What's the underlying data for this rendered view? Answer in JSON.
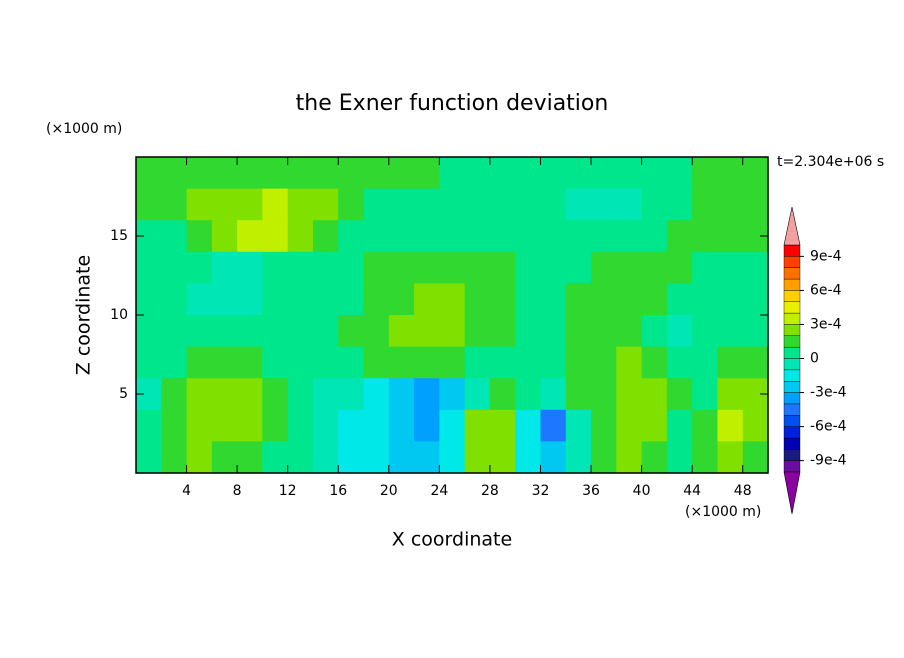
{
  "chart_data": {
    "type": "heatmap",
    "title": "the Exner function deviation",
    "xlabel": "X coordinate",
    "ylabel": "Z coordinate",
    "xunit": "(×1000 m)",
    "yunit": "(×1000 m)",
    "annotation": "t=2.304e+06 s",
    "xlim": [
      0,
      50
    ],
    "ylim": [
      0,
      20
    ],
    "xticks": [
      4,
      8,
      12,
      16,
      20,
      24,
      28,
      32,
      36,
      40,
      44,
      48
    ],
    "yticks": [
      5,
      10,
      15
    ],
    "x": [
      1,
      3,
      5,
      7,
      9,
      11,
      13,
      15,
      17,
      19,
      21,
      23,
      25,
      27,
      29,
      31,
      33,
      35,
      37,
      39,
      41,
      43,
      45,
      47,
      49
    ],
    "y": [
      19,
      17,
      15,
      13,
      11,
      9,
      7,
      5,
      3,
      1
    ],
    "z": [
      [
        0.00015,
        0.00015,
        0.00015,
        0.00015,
        0.00015,
        0.00015,
        0.00015,
        0.00015,
        0.00015,
        0.00015,
        0.00015,
        0.00015,
        5e-05,
        5e-05,
        5e-05,
        5e-05,
        5e-05,
        5e-05,
        5e-05,
        5e-05,
        5e-05,
        5e-05,
        0.00015,
        0.00015,
        0.00015
      ],
      [
        0.00015,
        0.00015,
        0.00025,
        0.00025,
        0.00025,
        0.00035,
        0.00025,
        0.00025,
        0.00015,
        5e-05,
        5e-05,
        5e-05,
        5e-05,
        5e-05,
        5e-05,
        5e-05,
        5e-05,
        -5e-05,
        -5e-05,
        -5e-05,
        5e-05,
        5e-05,
        0.00015,
        0.00015,
        0.00015
      ],
      [
        5e-05,
        5e-05,
        0.00015,
        0.00025,
        0.00035,
        0.00035,
        0.00025,
        0.00015,
        5e-05,
        5e-05,
        5e-05,
        5e-05,
        5e-05,
        5e-05,
        5e-05,
        5e-05,
        5e-05,
        5e-05,
        5e-05,
        5e-05,
        5e-05,
        0.00015,
        0.00015,
        0.00015,
        0.00015
      ],
      [
        5e-05,
        5e-05,
        5e-05,
        -5e-05,
        -5e-05,
        5e-05,
        5e-05,
        5e-05,
        5e-05,
        0.00015,
        0.00015,
        0.00015,
        0.00015,
        0.00015,
        0.00015,
        5e-05,
        5e-05,
        5e-05,
        0.00015,
        0.00015,
        0.00015,
        0.00015,
        5e-05,
        5e-05,
        5e-05
      ],
      [
        5e-05,
        5e-05,
        -5e-05,
        -5e-05,
        -5e-05,
        5e-05,
        5e-05,
        5e-05,
        5e-05,
        0.00015,
        0.00015,
        0.00025,
        0.00025,
        0.00015,
        0.00015,
        5e-05,
        5e-05,
        0.00015,
        0.00015,
        0.00015,
        0.00015,
        5e-05,
        5e-05,
        5e-05,
        5e-05
      ],
      [
        5e-05,
        5e-05,
        5e-05,
        5e-05,
        5e-05,
        5e-05,
        5e-05,
        5e-05,
        0.00015,
        0.00015,
        0.00025,
        0.00025,
        0.00025,
        0.00015,
        0.00015,
        5e-05,
        5e-05,
        0.00015,
        0.00015,
        0.00015,
        5e-05,
        -5e-05,
        5e-05,
        5e-05,
        5e-05
      ],
      [
        5e-05,
        5e-05,
        0.00015,
        0.00015,
        0.00015,
        5e-05,
        5e-05,
        5e-05,
        5e-05,
        0.00015,
        0.00015,
        0.00015,
        0.00015,
        5e-05,
        5e-05,
        5e-05,
        5e-05,
        0.00015,
        0.00015,
        0.00025,
        0.00015,
        5e-05,
        5e-05,
        0.00015,
        0.00015
      ],
      [
        -5e-05,
        0.00015,
        0.00025,
        0.00025,
        0.00025,
        0.00015,
        5e-05,
        -5e-05,
        -5e-05,
        -0.00015,
        -0.00025,
        -0.00035,
        -0.00025,
        -5e-05,
        0.00015,
        5e-05,
        -5e-05,
        0.00015,
        0.00015,
        0.00025,
        0.00025,
        0.00015,
        5e-05,
        0.00025,
        0.00025
      ],
      [
        5e-05,
        0.00015,
        0.00025,
        0.00025,
        0.00025,
        0.00015,
        5e-05,
        -5e-05,
        -0.00015,
        -0.00015,
        -0.00025,
        -0.00035,
        -0.00015,
        0.00025,
        0.00025,
        -0.00015,
        -0.00045,
        -5e-05,
        0.00015,
        0.00025,
        0.00025,
        5e-05,
        0.00015,
        0.00035,
        0.00025
      ],
      [
        5e-05,
        0.00015,
        0.00025,
        0.00015,
        0.00015,
        5e-05,
        5e-05,
        -5e-05,
        -0.00015,
        -0.00015,
        -0.00025,
        -0.00025,
        -0.00015,
        0.00025,
        0.00025,
        -0.00015,
        -0.00025,
        -5e-05,
        0.00015,
        0.00025,
        0.00015,
        5e-05,
        0.00015,
        0.00025,
        0.00015
      ]
    ],
    "levels": [
      -0.001,
      -0.0009,
      -0.0008,
      -0.0007,
      -0.0006,
      -0.0005,
      -0.0004,
      -0.0003,
      -0.0002,
      -0.0001,
      0,
      0.0001,
      0.0002,
      0.0003,
      0.0004,
      0.0005,
      0.0006,
      0.0007,
      0.0008,
      0.0009,
      0.001
    ],
    "colors": [
      "#6a0da0",
      "#1a1a80",
      "#0000b4",
      "#0020e0",
      "#0050f0",
      "#1e78ff",
      "#00a0ff",
      "#00c8f0",
      "#00e8e8",
      "#00e6b4",
      "#00e68c",
      "#30d830",
      "#80e000",
      "#c0f000",
      "#e8f000",
      "#ffd000",
      "#ffa000",
      "#ff7000",
      "#ff4000",
      "#ff0000"
    ],
    "under_color": "#8b00a0",
    "over_color": "#f4a0a0",
    "colorbar_ticks": [
      {
        "value": -0.0009,
        "label": "-9e-4"
      },
      {
        "value": -0.0006,
        "label": "-6e-4"
      },
      {
        "value": -0.0003,
        "label": "-3e-4"
      },
      0,
      {
        "value": 0.0003,
        "label": "3e-4"
      },
      {
        "value": 0.0006,
        "label": "6e-4"
      },
      {
        "value": 0.0009,
        "label": "9e-4"
      }
    ]
  }
}
